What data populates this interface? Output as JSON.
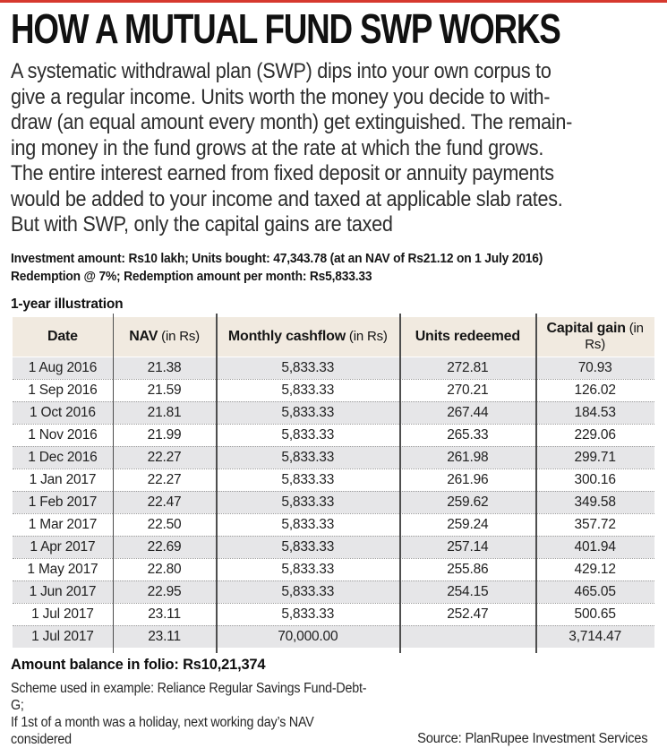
{
  "accent_color": "#d6382e",
  "header": {
    "title": "HOW A MUTUAL FUND SWP WORKS",
    "intro": "A systematic withdrawal plan (SWP) dips into your own corpus to\ngive a regular income. Units worth the money you decide to with-\ndraw (an equal amount every month) get extinguished. The remain-\ning money in the fund grows at the rate at which the fund grows.\nThe entire interest earned from fixed deposit or annuity payments\nwould be added to your income and taxed at applicable slab rates.\nBut with SWP, only the capital gains are taxed"
  },
  "parameters": {
    "line1": "Investment amount: Rs10 lakh; Units bought: 47,343.78 (at an NAV of Rs21.12 on 1 July 2016)",
    "line2": "Redemption @ 7%; Redemption amount per month: Rs5,833.33"
  },
  "table": {
    "title": "1-year illustration",
    "columns": [
      {
        "label": "Date",
        "suffix": ""
      },
      {
        "label": "NAV",
        "suffix": " (in Rs)"
      },
      {
        "label": "Monthly cashflow",
        "suffix": " (in Rs)"
      },
      {
        "label": "Units redeemed",
        "suffix": ""
      },
      {
        "label": "Capital gain",
        "suffix": " (in Rs)"
      }
    ],
    "rows": [
      [
        "1 Aug 2016",
        "21.38",
        "5,833.33",
        "272.81",
        "70.93"
      ],
      [
        "1 Sep 2016",
        "21.59",
        "5,833.33",
        "270.21",
        "126.02"
      ],
      [
        "1 Oct 2016",
        "21.81",
        "5,833.33",
        "267.44",
        "184.53"
      ],
      [
        "1 Nov 2016",
        "21.99",
        "5,833.33",
        "265.33",
        "229.06"
      ],
      [
        "1 Dec 2016",
        "22.27",
        "5,833.33",
        "261.98",
        "299.71"
      ],
      [
        "1 Jan 2017",
        "22.27",
        "5,833.33",
        "261.96",
        "300.16"
      ],
      [
        "1 Feb 2017",
        "22.47",
        "5,833.33",
        "259.62",
        "349.58"
      ],
      [
        "1 Mar 2017",
        "22.50",
        "5,833.33",
        "259.24",
        "357.72"
      ],
      [
        "1 Apr 2017",
        "22.69",
        "5,833.33",
        "257.14",
        "401.94"
      ],
      [
        "1 May 2017",
        "22.80",
        "5,833.33",
        "255.86",
        "429.12"
      ],
      [
        "1 Jun 2017",
        "22.95",
        "5,833.33",
        "254.15",
        "465.05"
      ],
      [
        "1 Jul 2017",
        "23.11",
        "5,833.33",
        "252.47",
        "500.65"
      ],
      [
        "1 Jul 2017",
        "23.11",
        "70,000.00",
        "",
        "3,714.47"
      ]
    ],
    "header_bg": "#f1eae0",
    "row_alt_bg": "#e6e6e8"
  },
  "summary": {
    "balance": "Amount balance in folio: Rs10,21,374"
  },
  "footer": {
    "note": "Scheme used in example: Reliance Regular Savings Fund-Debt-G;\nIf 1st of a month was a holiday, next working day’s NAV considered",
    "source": "Source: PlanRupee Investment Services"
  }
}
